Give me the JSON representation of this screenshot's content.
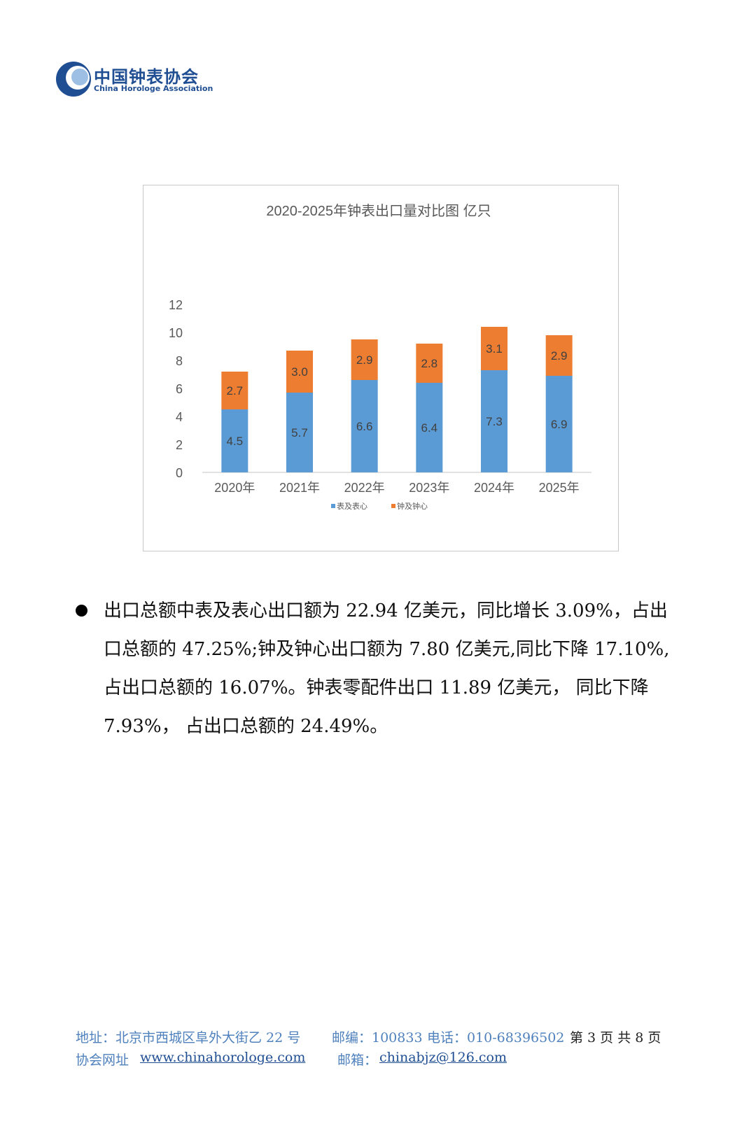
{
  "header": {
    "logo_cn": "中国钟表协会",
    "logo_en": "China Horologe Association"
  },
  "chart_data": {
    "type": "bar",
    "stacked": true,
    "title": "2020-2025年钟表出口量对比图  亿只",
    "categories": [
      "2020年",
      "2021年",
      "2022年",
      "2023年",
      "2024年",
      "2025年"
    ],
    "series": [
      {
        "name": "表及表心",
        "values": [
          4.5,
          5.7,
          6.6,
          6.4,
          7.3,
          6.9
        ],
        "labels": [
          "4.5",
          "5.7",
          "6.6",
          "6.4",
          "7.3",
          "6.9"
        ],
        "color": "#5b9bd5"
      },
      {
        "name": "钟及钟心",
        "values": [
          2.7,
          3.0,
          2.9,
          2.8,
          3.1,
          2.9
        ],
        "labels": [
          "2.7",
          "3.0",
          "2.9",
          "2.8",
          "3.1",
          "2.9"
        ],
        "color": "#ed7d31"
      }
    ],
    "ylim": [
      0,
      12
    ],
    "yticks": [
      "0",
      "2",
      "4",
      "6",
      "8",
      "10",
      "12"
    ],
    "grid": false,
    "legend": "bottom"
  },
  "body": {
    "lines": [
      "出口总额中表及表心出口额为 22.94 亿美元，同比增长 3.09%，占出",
      "口总额的 47.25%;钟及钟心出口额为 7.80 亿美元,同比下降 17.10%,",
      "占出口总额的 16.07%。钟表零配件出口 11.89 亿美元， 同比下降",
      "7.93%， 占出口总额的 24.49%。"
    ]
  },
  "footer": {
    "address": "地址：北京市西城区阜外大街乙 22 号",
    "postcode": "邮编：100833",
    "phone": "电话：010-68396502",
    "page": "第 3 页 共 8 页",
    "website_label": "协会网址",
    "website": "www.chinahorologe.com",
    "email_label": "邮箱：",
    "email": "chinabjz@126.com"
  }
}
